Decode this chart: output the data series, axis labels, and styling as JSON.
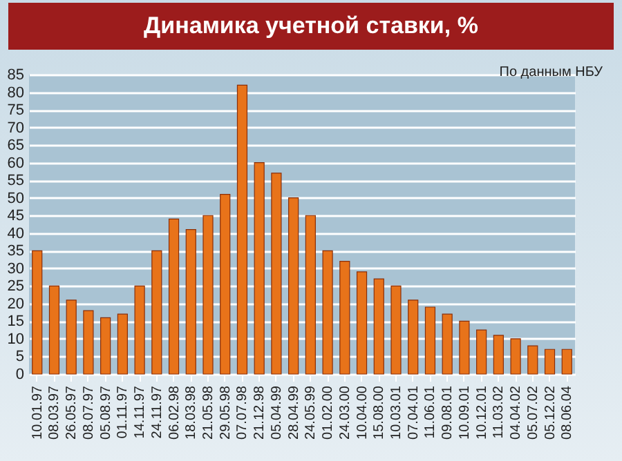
{
  "chart_data": {
    "type": "bar",
    "title": "Динамика учетной ставки, %",
    "annotations": [
      "По данным НБУ"
    ],
    "categories": [
      "10.01.97",
      "08.03.97",
      "26.05.97",
      "08.07.97",
      "05.08.97",
      "01.11.97",
      "14.11.97",
      "24.11.97",
      "06.02.98",
      "18.03.98",
      "21.05.98",
      "29.05.98",
      "07.07.98",
      "21.12.98",
      "05.04.99",
      "28.04.99",
      "24.05.99",
      "01.02.00",
      "24.03.00",
      "10.04.00",
      "15.08.00",
      "10.03.01",
      "07.04.01",
      "11.06.01",
      "09.08.01",
      "10.09.01",
      "10.12.01",
      "11.03.02",
      "04.04.02",
      "05.07.02",
      "05.12.02",
      "08.06.04"
    ],
    "values": [
      35,
      25,
      21,
      18,
      16,
      17,
      25,
      35,
      44,
      41,
      45,
      51,
      82,
      60,
      57,
      50,
      45,
      35,
      32,
      29,
      27,
      25,
      21,
      19,
      17,
      15,
      12.5,
      11,
      10,
      8,
      7,
      7
    ],
    "color": "#e8731a",
    "ylim": [
      0,
      85
    ],
    "yticks": [
      0,
      5,
      10,
      15,
      20,
      25,
      30,
      35,
      40,
      45,
      50,
      55,
      60,
      65,
      70,
      75,
      80,
      85
    ],
    "grid": "y"
  }
}
